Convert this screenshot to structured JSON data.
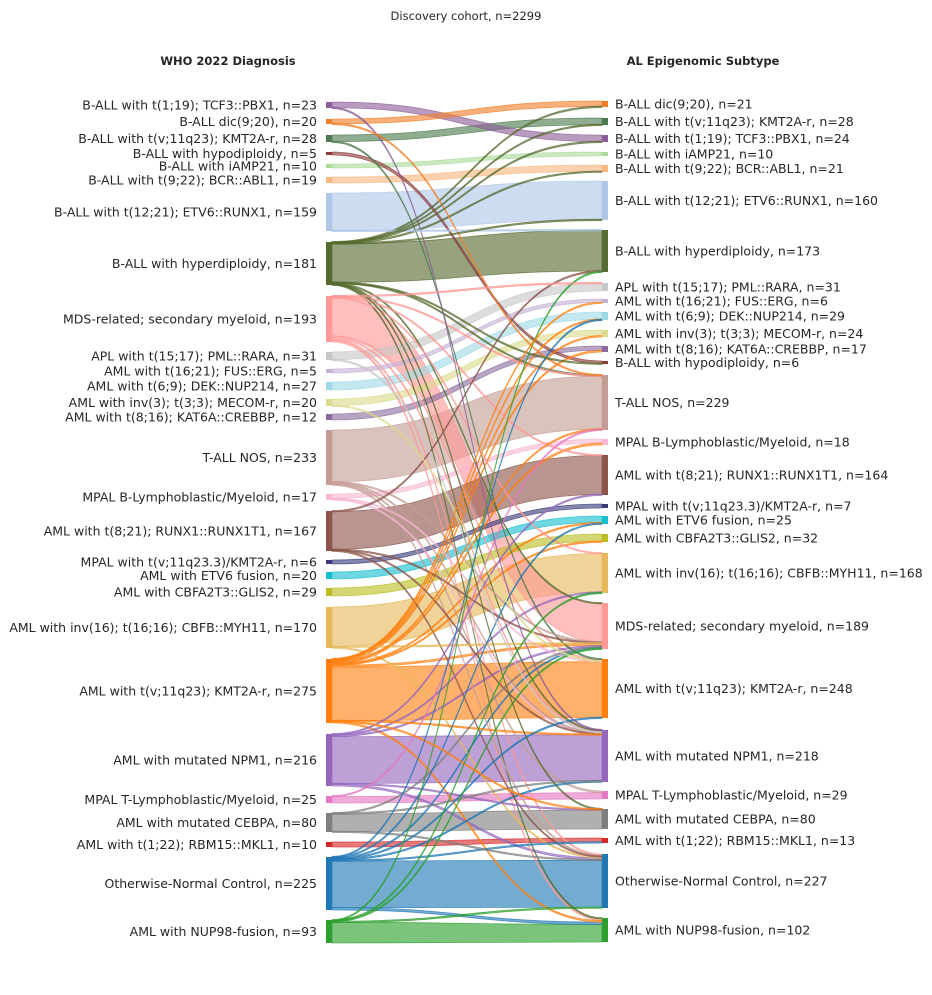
{
  "title": "Discovery cohort, n=2299",
  "left_header": "WHO 2022 Diagnosis",
  "right_header": "AL Epigenomic Subtype",
  "colors": {
    "TCF3": "#8c5d98",
    "DIC920": "#f07f2a",
    "KMT2A_BALL": "#4d7a4e",
    "HYPODIP": "#8b3a3a",
    "IAMP21": "#a9dc9a",
    "BCRABL1": "#f9b67f",
    "ETV6RUNX1": "#aec7e8",
    "HYPERDIP": "#556b2f",
    "MDS": "#ff9896",
    "PML": "#c7c7c7",
    "FUSERG": "#c5b0d5",
    "DEKNUP": "#9edae5",
    "MECOM": "#dbdb8d",
    "KAT6A": "#8a6d9e",
    "TALL": "#c49c94",
    "MPALB": "#f7b6d2",
    "RUNX1T1": "#8c564b",
    "MPALKMT2A": "#393b79",
    "ETV6FUS": "#17becf",
    "CBFA2T3": "#bcbd22",
    "CBFB": "#e6b85a",
    "KMT2A_AML": "#ff7f0e",
    "NPM1": "#9467bd",
    "MPALT": "#e377c2",
    "CEBPA": "#7f7f7f",
    "RBM15": "#d62728",
    "NORMAL": "#1f77b4",
    "NUP98": "#2ca02c"
  },
  "left_nodes": [
    {
      "id": "TCF3",
      "label": "B-ALL with t(1;19); TCF3::PBX1, n=23"
    },
    {
      "id": "DIC920",
      "label": "B-ALL dic(9;20), n=20"
    },
    {
      "id": "KMT2A_BALL",
      "label": "B-ALL with t(v;11q23); KMT2A-r, n=28"
    },
    {
      "id": "HYPODIP",
      "label": "B-ALL with hypodiploidy, n=5"
    },
    {
      "id": "IAMP21",
      "label": "B-ALL with iAMP21, n=10"
    },
    {
      "id": "BCRABL1",
      "label": "B-ALL with t(9;22); BCR::ABL1, n=19"
    },
    {
      "id": "ETV6RUNX1",
      "label": "B-ALL with t(12;21); ETV6::RUNX1, n=159"
    },
    {
      "id": "HYPERDIP",
      "label": "B-ALL with hyperdiploidy, n=181"
    },
    {
      "id": "MDS",
      "label": "MDS-related; secondary myeloid, n=193"
    },
    {
      "id": "PML",
      "label": "APL with t(15;17); PML::RARA, n=31"
    },
    {
      "id": "FUSERG",
      "label": "AML with t(16;21); FUS::ERG, n=5"
    },
    {
      "id": "DEKNUP",
      "label": "AML with t(6;9); DEK::NUP214, n=27"
    },
    {
      "id": "MECOM",
      "label": "AML with inv(3); t(3;3); MECOM-r, n=20"
    },
    {
      "id": "KAT6A",
      "label": "AML with t(8;16); KAT6A::CREBBP, n=12"
    },
    {
      "id": "TALL",
      "label": "T-ALL NOS, n=233"
    },
    {
      "id": "MPALB",
      "label": "MPAL B-Lymphoblastic/Myeloid, n=17"
    },
    {
      "id": "RUNX1T1",
      "label": "AML with t(8;21); RUNX1::RUNX1T1, n=167"
    },
    {
      "id": "MPALKMT2A",
      "label": "MPAL with t(v;11q23.3)/KMT2A-r, n=6"
    },
    {
      "id": "ETV6FUS",
      "label": "AML with ETV6 fusion, n=20"
    },
    {
      "id": "CBFA2T3",
      "label": "AML with CBFA2T3::GLIS2, n=29"
    },
    {
      "id": "CBFB",
      "label": "AML with inv(16); t(16;16); CBFB::MYH11, n=170"
    },
    {
      "id": "KMT2A_AML",
      "label": "AML with t(v;11q23); KMT2A-r, n=275"
    },
    {
      "id": "NPM1",
      "label": "AML with mutated NPM1, n=216"
    },
    {
      "id": "MPALT",
      "label": "MPAL T-Lymphoblastic/Myeloid, n=25"
    },
    {
      "id": "CEBPA",
      "label": "AML with mutated CEBPA, n=80"
    },
    {
      "id": "RBM15",
      "label": "AML with t(1;22); RBM15::MKL1, n=10"
    },
    {
      "id": "NORMAL",
      "label": "Otherwise-Normal Control, n=225"
    },
    {
      "id": "NUP98",
      "label": "AML with NUP98-fusion, n=93"
    }
  ],
  "right_nodes": [
    {
      "id": "DIC920",
      "label": "B-ALL dic(9;20), n=21"
    },
    {
      "id": "KMT2A_BALL",
      "label": "B-ALL with t(v;11q23); KMT2A-r, n=28"
    },
    {
      "id": "TCF3",
      "label": "B-ALL with t(1;19); TCF3::PBX1, n=24"
    },
    {
      "id": "IAMP21",
      "label": "B-ALL with iAMP21, n=10"
    },
    {
      "id": "BCRABL1",
      "label": "B-ALL with t(9;22); BCR::ABL1, n=21"
    },
    {
      "id": "ETV6RUNX1",
      "label": "B-ALL with t(12;21); ETV6::RUNX1, n=160"
    },
    {
      "id": "HYPERDIP",
      "label": "B-ALL with hyperdiploidy, n=173"
    },
    {
      "id": "PML",
      "label": "APL with t(15;17); PML::RARA, n=31"
    },
    {
      "id": "FUSERG",
      "label": "AML with t(16;21); FUS::ERG, n=6"
    },
    {
      "id": "DEKNUP",
      "label": "AML with t(6;9); DEK::NUP214, n=29"
    },
    {
      "id": "MECOM",
      "label": "AML with inv(3); t(3;3); MECOM-r, n=24"
    },
    {
      "id": "KAT6A",
      "label": "AML with t(8;16); KAT6A::CREBBP, n=17"
    },
    {
      "id": "HYPODIP",
      "label": "B-ALL with hypodiploidy, n=6"
    },
    {
      "id": "TALL",
      "label": "T-ALL NOS, n=229"
    },
    {
      "id": "MPALB",
      "label": "MPAL B-Lymphoblastic/Myeloid, n=18"
    },
    {
      "id": "RUNX1T1",
      "label": "AML with t(8;21); RUNX1::RUNX1T1, n=164"
    },
    {
      "id": "MPALKMT2A",
      "label": "MPAL with t(v;11q23.3)/KMT2A-r, n=7"
    },
    {
      "id": "ETV6FUS",
      "label": "AML with ETV6 fusion, n=25"
    },
    {
      "id": "CBFA2T3",
      "label": "AML with CBFA2T3::GLIS2, n=32"
    },
    {
      "id": "CBFB",
      "label": "AML with inv(16); t(16;16); CBFB::MYH11, n=168"
    },
    {
      "id": "MDS",
      "label": "MDS-related; secondary myeloid, n=189"
    },
    {
      "id": "KMT2A_AML",
      "label": "AML with t(v;11q23); KMT2A-r, n=248"
    },
    {
      "id": "NPM1",
      "label": "AML with mutated NPM1, n=218"
    },
    {
      "id": "MPALT",
      "label": "MPAL T-Lymphoblastic/Myeloid, n=29"
    },
    {
      "id": "CEBPA",
      "label": "AML with mutated CEBPA, n=80"
    },
    {
      "id": "RBM15",
      "label": "AML with t(1;22); RBM15::MKL1, n=13"
    },
    {
      "id": "NORMAL",
      "label": "Otherwise-Normal Control, n=227"
    },
    {
      "id": "NUP98",
      "label": "AML with NUP98-fusion, n=102"
    }
  ]
}
